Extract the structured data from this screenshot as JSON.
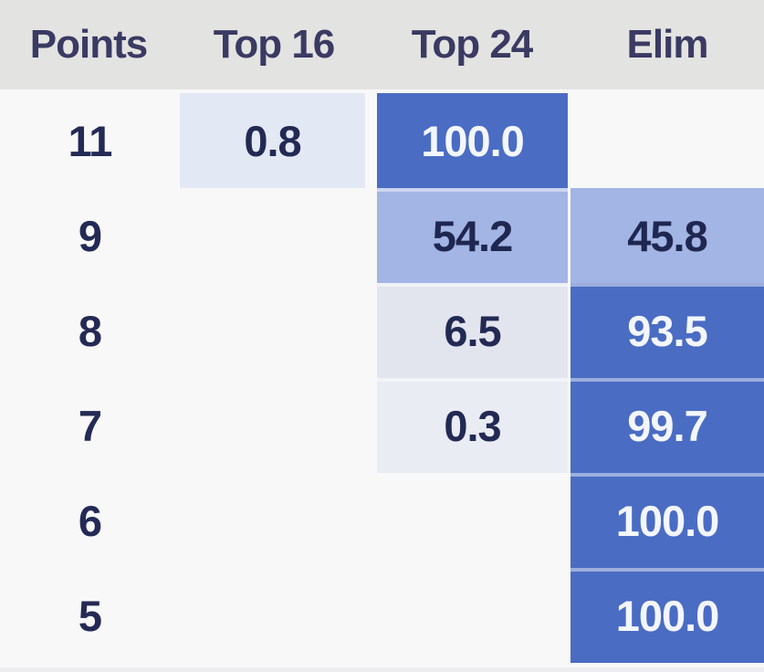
{
  "header": {
    "columns": [
      {
        "id": "points",
        "label": "Points"
      },
      {
        "id": "top16",
        "label": "Top 16"
      },
      {
        "id": "top24",
        "label": "Top 24"
      },
      {
        "id": "elim",
        "label": "Elim"
      }
    ]
  },
  "colors": {
    "header_bg": "#e3e3e1",
    "body_bg": "#f8f8f9",
    "accent_dark_blue": "#4a6cc3",
    "accent_medium_blue": "#a2b5e4",
    "accent_light_blue": "#e3e9f4",
    "header_text": "#3a3a63",
    "value_text_dark": "#222a54",
    "value_text_light": "#f3f6fd"
  },
  "table": {
    "rows": [
      {
        "points": "11",
        "cells": {
          "top16": {
            "text": "0.8",
            "bg": "#e3e9f4",
            "fg": "#222a54",
            "sep": false
          },
          "top24": {
            "text": "100.0",
            "bg": "#4a6cc3",
            "fg": "#f3f6fd",
            "sep": false
          },
          "elim": null
        }
      },
      {
        "points": "9",
        "cells": {
          "top16": null,
          "top24": {
            "text": "54.2",
            "bg": "#a2b5e4",
            "fg": "#1f2750",
            "sep": true
          },
          "elim": {
            "text": "45.8",
            "bg": "#a2b5e4",
            "fg": "#1f2750",
            "sep": false
          }
        }
      },
      {
        "points": "8",
        "cells": {
          "top16": null,
          "top24": {
            "text": "6.5",
            "bg": "#e2e5ee",
            "fg": "#222a54",
            "sep": true
          },
          "elim": {
            "text": "93.5",
            "bg": "#4a6cc3",
            "fg": "#f3f6fd",
            "sep": true
          }
        }
      },
      {
        "points": "7",
        "cells": {
          "top16": null,
          "top24": {
            "text": "0.3",
            "bg": "#e9ecf3",
            "fg": "#222a54",
            "sep": true
          },
          "elim": {
            "text": "99.7",
            "bg": "#4a6cc3",
            "fg": "#f3f6fd",
            "sep": true
          }
        }
      },
      {
        "points": "6",
        "cells": {
          "top16": null,
          "top24": null,
          "elim": {
            "text": "100.0",
            "bg": "#4a6cc3",
            "fg": "#f3f6fd",
            "sep": true
          }
        }
      },
      {
        "points": "5",
        "cells": {
          "top16": null,
          "top24": null,
          "elim": {
            "text": "100.0",
            "bg": "#4a6cc3",
            "fg": "#f3f6fd",
            "sep": true
          }
        }
      }
    ]
  },
  "chart_data": {
    "type": "table",
    "title": "",
    "columns": [
      "Points",
      "Top 16",
      "Top 24",
      "Elim"
    ],
    "rows": [
      {
        "Points": 11,
        "Top 16": 0.8,
        "Top 24": 100.0,
        "Elim": null
      },
      {
        "Points": 9,
        "Top 16": null,
        "Top 24": 54.2,
        "Elim": 45.8
      },
      {
        "Points": 8,
        "Top 16": null,
        "Top 24": 6.5,
        "Elim": 93.5
      },
      {
        "Points": 7,
        "Top 16": null,
        "Top 24": 0.3,
        "Elim": 99.7
      },
      {
        "Points": 6,
        "Top 16": null,
        "Top 24": null,
        "Elim": 100.0
      },
      {
        "Points": 5,
        "Top 16": null,
        "Top 24": null,
        "Elim": 100.0
      }
    ],
    "notes": "Probability table; cell background blue intensity encodes percentage (darker = higher)."
  }
}
